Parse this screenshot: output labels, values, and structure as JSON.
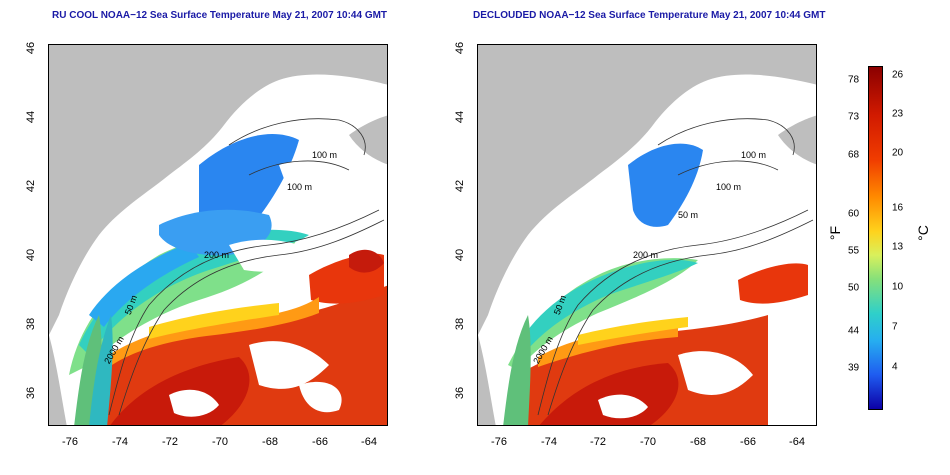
{
  "left_map": {
    "title": "RU COOL NOAA−12 Sea Surface Temperature May 21, 2007 10:44 GMT",
    "contours": [
      "100 m",
      "100 m",
      "200 m",
      "50 m",
      "2000 m"
    ]
  },
  "right_map": {
    "title": "DECLOUDED NOAA−12 Sea Surface Temperature May 21, 2007 10:44 GMT",
    "contours": [
      "100 m",
      "100 m",
      "50 m",
      "200 m",
      "50 m",
      "2000 m"
    ]
  },
  "x_ticks": [
    "-76",
    "-74",
    "-72",
    "-70",
    "-68",
    "-66",
    "-64"
  ],
  "y_ticks": [
    "46",
    "44",
    "42",
    "40",
    "38",
    "36"
  ],
  "colorbar": {
    "fahrenheit_ticks": [
      "78",
      "73",
      "68",
      "60",
      "55",
      "50",
      "44",
      "39"
    ],
    "celsius_ticks": [
      "26",
      "23",
      "20",
      "16",
      "13",
      "10",
      "7",
      "4"
    ],
    "fahrenheit_unit": "°F",
    "celsius_unit": "°C"
  },
  "colors": {
    "land": "#bebebe",
    "cloud": "#ffffff",
    "warm": "#e8360c",
    "cool": "#2a86f0",
    "title": "#1a1aa6"
  }
}
